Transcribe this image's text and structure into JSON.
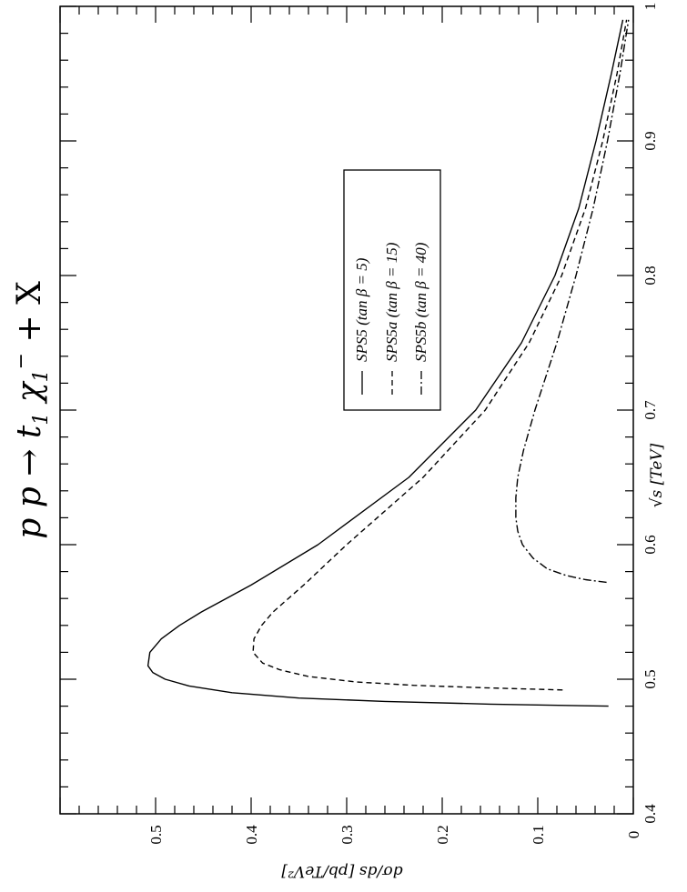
{
  "chart_data": {
    "type": "line",
    "title": "p p → t̃₁ χ₁⁻ + X",
    "title_parts": {
      "lead": "p p → ",
      "stop": "t",
      "stop_sub": "1",
      "chi": " χ",
      "chi_sub": "1",
      "chi_sup": "−",
      "tail": " + X"
    },
    "xlabel": "√s  [TeV]",
    "ylabel": "dσ/ds [pb/TeV²]",
    "xlim": [
      0.4,
      1.0
    ],
    "ylim": [
      0.0,
      0.6
    ],
    "x_ticks": [
      "0.4",
      "0.5",
      "0.6",
      "0.7",
      "0.8",
      "0.9",
      "1"
    ],
    "y_ticks": [
      "0",
      "0.1",
      "0.2",
      "0.3",
      "0.4",
      "0.5"
    ],
    "orientation": "rotated 90 degrees",
    "grid": false,
    "legend_position": "center",
    "series": [
      {
        "name": "SPS5  (tan β = 5)",
        "name_parts": {
          "model": "SPS5",
          "beta": "(tan β = 5)"
        },
        "style": "solid",
        "x": [
          0.48,
          0.4815,
          0.4835,
          0.486,
          0.49,
          0.495,
          0.5,
          0.505,
          0.51,
          0.52,
          0.53,
          0.54,
          0.55,
          0.57,
          0.6,
          0.65,
          0.7,
          0.75,
          0.8,
          0.85,
          0.9,
          0.95,
          0.99
        ],
        "y": [
          0.026,
          0.15,
          0.26,
          0.35,
          0.42,
          0.465,
          0.49,
          0.503,
          0.508,
          0.506,
          0.494,
          0.475,
          0.452,
          0.4,
          0.33,
          0.235,
          0.165,
          0.117,
          0.082,
          0.057,
          0.039,
          0.023,
          0.011
        ]
      },
      {
        "name": "SPS5a (tan β = 15)",
        "name_parts": {
          "model": "SPS5a",
          "beta": "(tan β = 15)"
        },
        "style": "dashed",
        "x": [
          0.492,
          0.4935,
          0.4955,
          0.498,
          0.502,
          0.507,
          0.512,
          0.52,
          0.53,
          0.54,
          0.55,
          0.57,
          0.6,
          0.65,
          0.7,
          0.75,
          0.8,
          0.85,
          0.9,
          0.95,
          0.99
        ],
        "y": [
          0.074,
          0.15,
          0.23,
          0.29,
          0.34,
          0.37,
          0.388,
          0.398,
          0.397,
          0.389,
          0.377,
          0.345,
          0.3,
          0.22,
          0.155,
          0.109,
          0.075,
          0.05,
          0.032,
          0.017,
          0.007
        ]
      },
      {
        "name": "SPS5b (tan β = 40)",
        "name_parts": {
          "model": "SPS5b",
          "beta": "(tan β = 40)"
        },
        "style": "dash-dot",
        "x": [
          0.572,
          0.574,
          0.577,
          0.582,
          0.59,
          0.6,
          0.61,
          0.62,
          0.635,
          0.65,
          0.67,
          0.7,
          0.75,
          0.8,
          0.85,
          0.9,
          0.95,
          0.99
        ],
        "y": [
          0.028,
          0.05,
          0.07,
          0.09,
          0.105,
          0.116,
          0.121,
          0.123,
          0.123,
          0.121,
          0.115,
          0.103,
          0.08,
          0.06,
          0.042,
          0.027,
          0.014,
          0.005
        ]
      }
    ]
  }
}
